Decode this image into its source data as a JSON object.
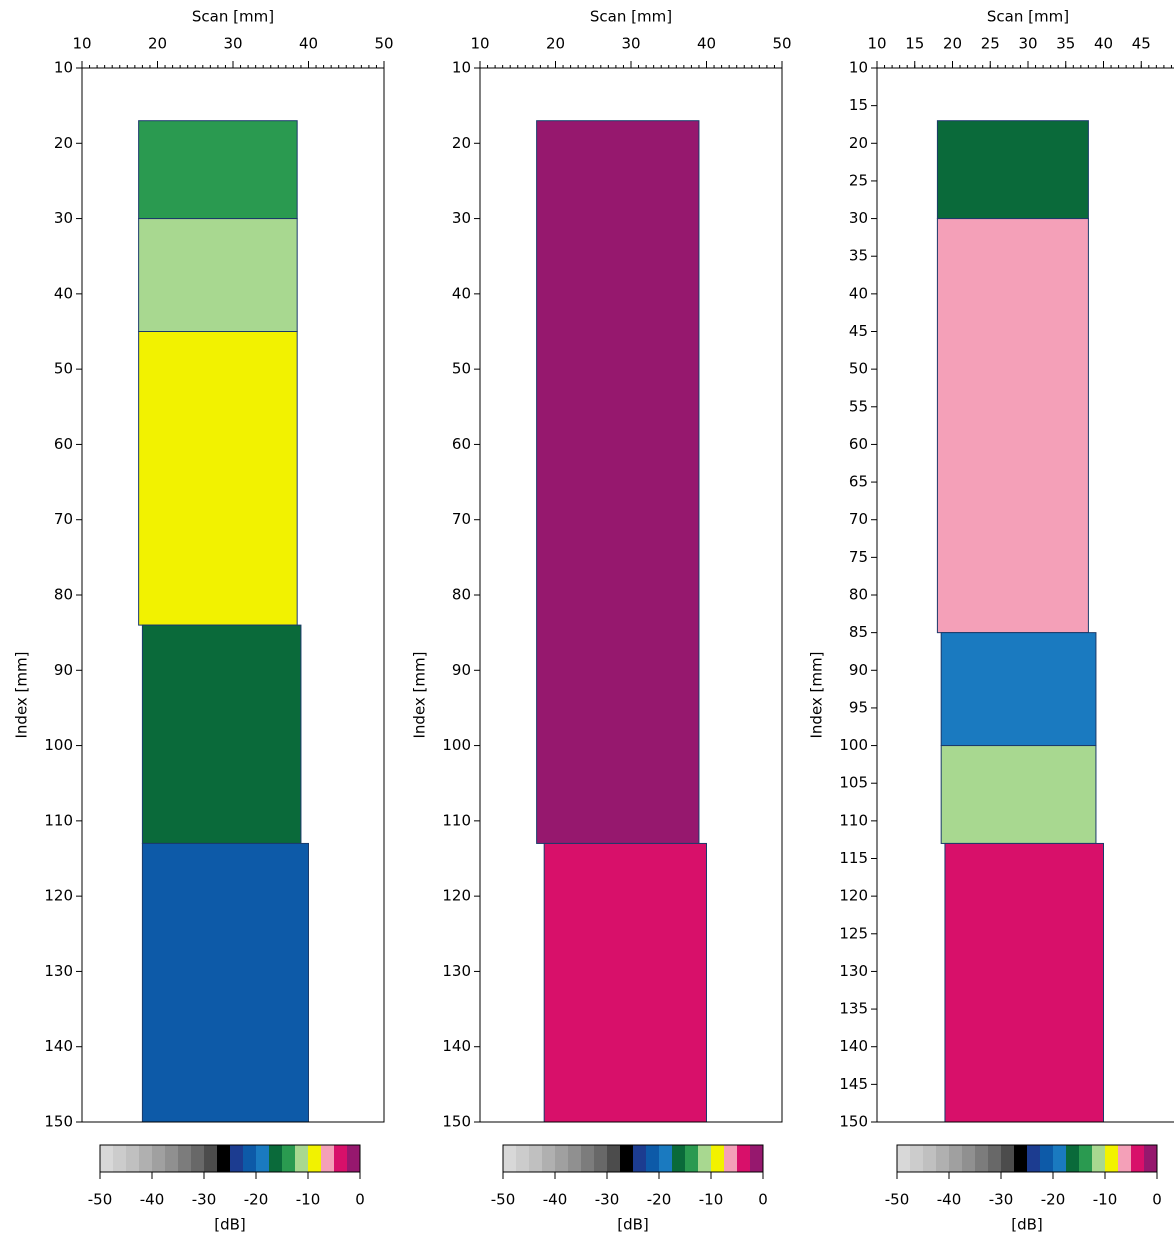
{
  "charts": [
    {
      "type": "heatmap",
      "x_label": "Scan [mm]",
      "y_label": "Index [mm]",
      "xlim": [
        10,
        50
      ],
      "xticks": [
        10,
        20,
        30,
        40,
        50
      ],
      "ylim": [
        10,
        150
      ],
      "yticks": [
        10,
        20,
        30,
        40,
        50,
        60,
        70,
        80,
        90,
        100,
        110,
        120,
        130,
        140,
        150
      ],
      "zones": [
        {
          "x": [
            17.5,
            38.5
          ],
          "y": [
            17,
            30
          ],
          "value": -13
        },
        {
          "x": [
            17.5,
            38.5
          ],
          "y": [
            30,
            45
          ],
          "value": -11
        },
        {
          "x": [
            17.5,
            38.5
          ],
          "y": [
            45,
            84
          ],
          "value": -9
        },
        {
          "x": [
            18,
            39
          ],
          "y": [
            84,
            113
          ],
          "value": -16
        },
        {
          "x": [
            18,
            40
          ],
          "y": [
            113,
            150
          ],
          "value": -21
        }
      ],
      "colorbar": {
        "label": "[dB]",
        "lim": [
          -50,
          0
        ],
        "ticks": [
          -50,
          -40,
          -30,
          -20,
          -10,
          0
        ],
        "colors": [
          "#d8d8d8",
          "#cccccc",
          "#c0c0c0",
          "#b0b0b0",
          "#a0a0a0",
          "#909090",
          "#7c7c7c",
          "#686868",
          "#4c4c4c",
          "#000000",
          "#1c3c90",
          "#0d5aa8",
          "#1a7ac0",
          "#0a6a3a",
          "#2a9a50",
          "#a8d890",
          "#f2f200",
          "#f4a0b8",
          "#d8106a",
          "#96186e"
        ]
      }
    },
    {
      "type": "heatmap",
      "x_label": "Scan [mm]",
      "y_label": "Index [mm]",
      "xlim": [
        10,
        50
      ],
      "xticks": [
        10,
        20,
        30,
        40,
        50
      ],
      "ylim": [
        10,
        150
      ],
      "yticks": [
        10,
        20,
        30,
        40,
        50,
        60,
        70,
        80,
        90,
        100,
        110,
        120,
        130,
        140,
        150
      ],
      "zones": [
        {
          "x": [
            17.5,
            39
          ],
          "y": [
            17,
            113
          ],
          "value": -1
        },
        {
          "x": [
            18.5,
            40
          ],
          "y": [
            113,
            150
          ],
          "value": -3
        }
      ],
      "colorbar": {
        "label": "[dB]",
        "lim": [
          -50,
          0
        ],
        "ticks": [
          -50,
          -40,
          -30,
          -20,
          -10,
          0
        ],
        "colors": [
          "#d8d8d8",
          "#cccccc",
          "#c0c0c0",
          "#b0b0b0",
          "#a0a0a0",
          "#909090",
          "#7c7c7c",
          "#686868",
          "#4c4c4c",
          "#000000",
          "#1c3c90",
          "#0d5aa8",
          "#1a7ac0",
          "#0a6a3a",
          "#2a9a50",
          "#a8d890",
          "#f2f200",
          "#f4a0b8",
          "#d8106a",
          "#96186e"
        ]
      }
    },
    {
      "type": "heatmap",
      "x_label": "Scan [mm]",
      "y_label": "Index [mm]",
      "xlim": [
        10,
        50
      ],
      "xticks": [
        10,
        15,
        20,
        25,
        30,
        35,
        40,
        45
      ],
      "ylim": [
        10,
        150
      ],
      "yticks": [
        10,
        15,
        20,
        25,
        30,
        35,
        40,
        45,
        50,
        55,
        60,
        65,
        70,
        75,
        80,
        85,
        90,
        95,
        100,
        105,
        110,
        115,
        120,
        125,
        130,
        135,
        140,
        145,
        150
      ],
      "zones": [
        {
          "x": [
            18,
            38
          ],
          "y": [
            17,
            30
          ],
          "value": -16
        },
        {
          "x": [
            18,
            38
          ],
          "y": [
            30,
            85
          ],
          "value": -6
        },
        {
          "x": [
            18.5,
            39
          ],
          "y": [
            85,
            100
          ],
          "value": -19
        },
        {
          "x": [
            18.5,
            39
          ],
          "y": [
            100,
            113
          ],
          "value": -11
        },
        {
          "x": [
            19,
            40
          ],
          "y": [
            113,
            150
          ],
          "value": -3
        }
      ],
      "colorbar": {
        "label": "[dB]",
        "lim": [
          -50,
          0
        ],
        "ticks": [
          -50,
          -40,
          -30,
          -20,
          -10,
          0
        ],
        "colors": [
          "#d8d8d8",
          "#cccccc",
          "#c0c0c0",
          "#b0b0b0",
          "#a0a0a0",
          "#909090",
          "#7c7c7c",
          "#686868",
          "#4c4c4c",
          "#000000",
          "#1c3c90",
          "#0d5aa8",
          "#1a7ac0",
          "#0a6a3a",
          "#2a9a50",
          "#a8d890",
          "#f2f200",
          "#f4a0b8",
          "#d8106a",
          "#96186e"
        ]
      }
    }
  ]
}
